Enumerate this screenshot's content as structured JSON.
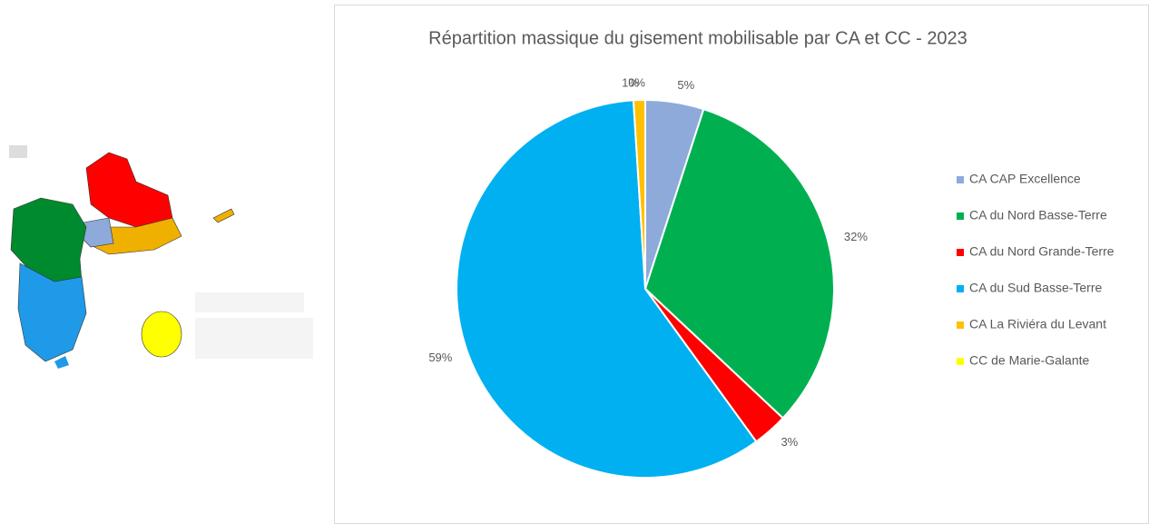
{
  "chart_data": {
    "type": "pie",
    "title": "Répartition massique du gisement mobilisable par CA et CC - 2023",
    "categories": [
      "CA CAP Excellence",
      "CA du Nord Basse-Terre",
      "CA du Nord Grande-Terre",
      "CA du Sud Basse-Terre",
      "CA La Riviéra du Levant",
      "CC de Marie-Galante"
    ],
    "values": [
      5,
      32,
      3,
      59,
      1,
      0
    ],
    "value_labels": [
      "5%",
      "32%",
      "3%",
      "59%",
      "1%",
      "0%"
    ],
    "colors": [
      "#8eaadb",
      "#00b050",
      "#ff0000",
      "#00b0f0",
      "#ffc000",
      "#ffff00"
    ],
    "legend": "right"
  }
}
